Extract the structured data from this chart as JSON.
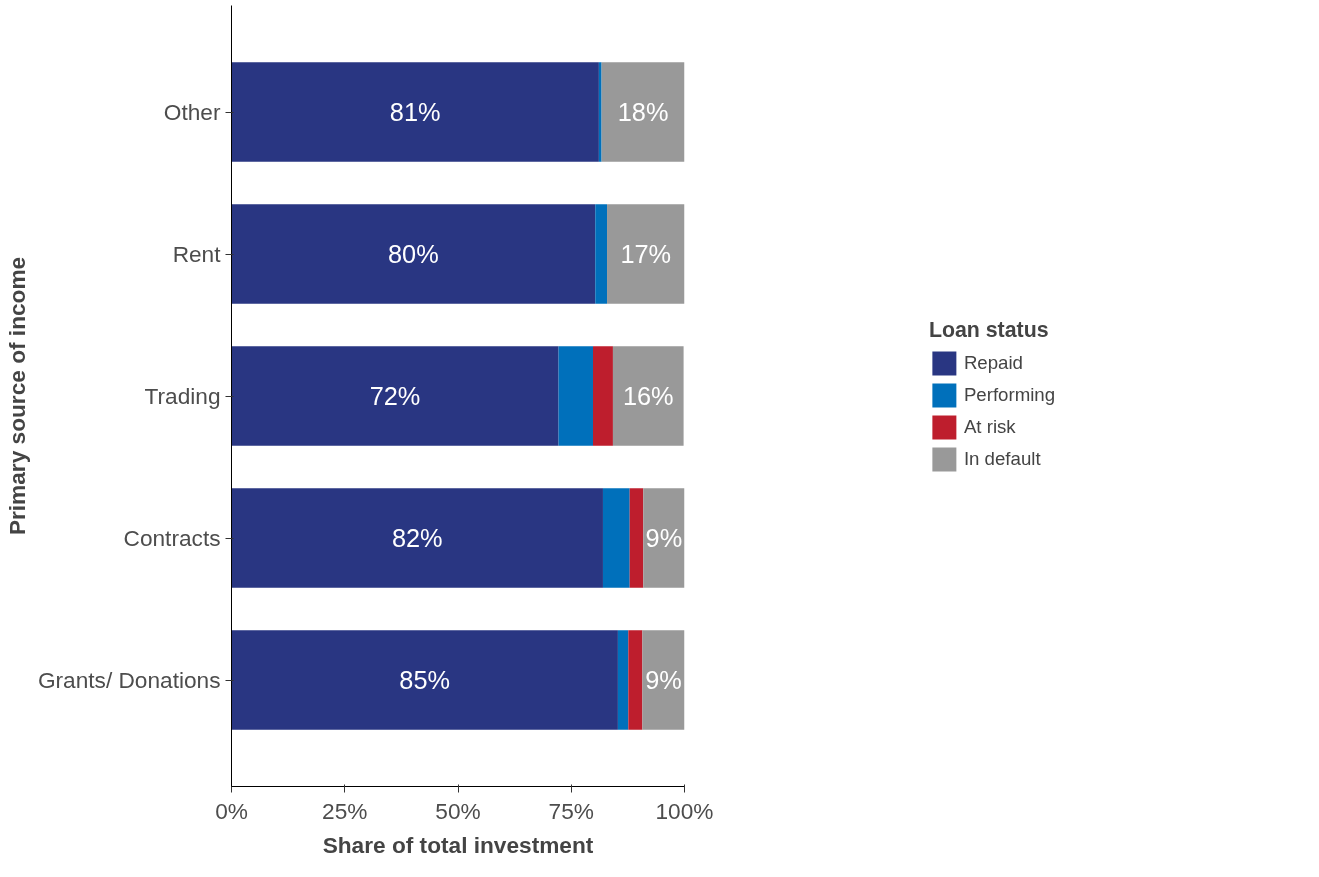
{
  "chart_data": {
    "type": "bar",
    "orientation": "horizontal",
    "stacked": true,
    "xlabel": "Share of total investment",
    "ylabel": "Primary source of income",
    "legend_title": "Loan status",
    "legend": "right",
    "grid": false,
    "categories": [
      "Other",
      "Rent",
      "Trading",
      "Contracts",
      "Grants/ Donations"
    ],
    "xlim": [
      0,
      100
    ],
    "xticks": [
      {
        "value": 0,
        "label": "0%"
      },
      {
        "value": 25,
        "label": "25%"
      },
      {
        "value": 50,
        "label": "50%"
      },
      {
        "value": 75,
        "label": "75%"
      },
      {
        "value": 100,
        "label": "100%"
      }
    ],
    "series": [
      {
        "name": "Repaid",
        "color": "#293682",
        "values": [
          81.1,
          80.3,
          72.2,
          82.0,
          85.3
        ],
        "value_labels": [
          "81%",
          "80%",
          "72%",
          "82%",
          "85%"
        ]
      },
      {
        "name": "Performing",
        "color": "#0070bb",
        "values": [
          0.6,
          2.6,
          7.6,
          5.9,
          2.3
        ],
        "value_labels": [
          null,
          null,
          null,
          null,
          null
        ]
      },
      {
        "name": "At risk",
        "color": "#be1e2d",
        "values": [
          0,
          0,
          4.4,
          3.0,
          3.1
        ],
        "value_labels": [
          null,
          null,
          null,
          null,
          null
        ]
      },
      {
        "name": "In default",
        "color": "#999999",
        "values": [
          18.3,
          17.1,
          15.6,
          9.1,
          9.3
        ],
        "value_labels": [
          "18%",
          "17%",
          "16%",
          "9%",
          "9%"
        ]
      }
    ]
  }
}
